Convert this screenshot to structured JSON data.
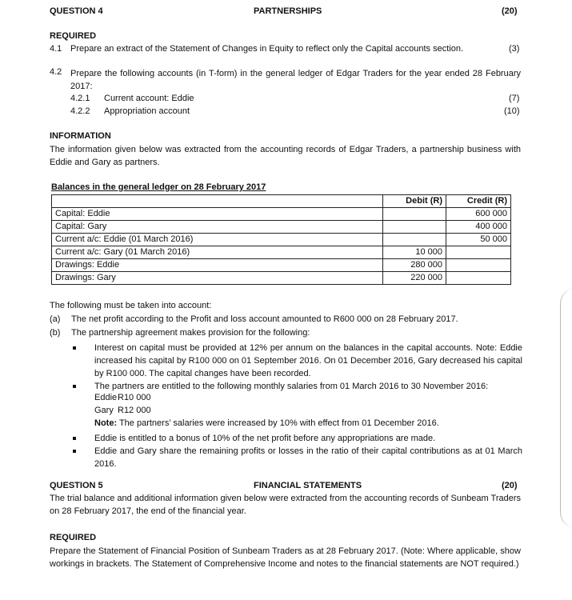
{
  "q4": {
    "title": "QUESTION 4",
    "topic": "PARTNERSHIPS",
    "marks": "(20)",
    "required": "REQUIRED",
    "r41_num": "4.1",
    "r41": "Prepare an extract of the Statement of Changes in Equity to reflect only the Capital accounts section.",
    "r41_marks": "(3)",
    "r42_num": "4.2",
    "r42": "Prepare the following accounts (in T-form) in the general ledger of Edgar Traders for the year ended 28 February 2017:",
    "r421_num": "4.2.1",
    "r421": "Current account: Eddie",
    "r421_marks": "(7)",
    "r422_num": "4.2.2",
    "r422": "Appropriation account",
    "r422_marks": "(10)",
    "info_heading": "INFORMATION",
    "info": "The information given below was extracted from the accounting records of Edgar Traders, a partnership business with Eddie and Gary as partners.",
    "table_title": "Balances in the general ledger on 28 February 2017",
    "table": {
      "headers": [
        "",
        "Debit (R)",
        "Credit (R)"
      ],
      "rows": [
        [
          "Capital: Eddie",
          "",
          "600 000"
        ],
        [
          "Capital: Gary",
          "",
          "400 000"
        ],
        [
          "Current a/c: Eddie (01 March 2016)",
          "",
          "50 000"
        ],
        [
          "Current a/c: Gary (01 March 2016)",
          "10 000",
          ""
        ],
        [
          "Drawings: Eddie",
          "280 000",
          ""
        ],
        [
          "Drawings: Gary",
          "220 000",
          ""
        ]
      ]
    },
    "following": "The following must be taken into account:",
    "a_label": "(a)",
    "a": "The net profit according to the Profit and loss account amounted to R600 000 on 28 February 2017.",
    "b_label": "(b)",
    "b": "The partnership agreement makes provision for the following:",
    "bullet1": "Interest on capital must be provided at 12% per annum on the balances in the capital accounts.  Note: Eddie increased his capital by R100 000 on 01 September 2016.  On 01 December 2016, Gary decreased his capital by R100 000.  The capital changes have been recorded.",
    "bullet2": "The partners are entitled to the following monthly salaries from 01 March 2016 to 30 November 2016:",
    "salary_eddie_name": "Eddie",
    "salary_eddie": "R10 000",
    "salary_gary_name": "Gary",
    "salary_gary": "R12 000",
    "note_label": "Note:",
    "note": " The partners’ salaries were increased by 10% with effect from 01 December 2016.",
    "bullet3": "Eddie is entitled to a bonus of 10% of the net profit before any appropriations are made.",
    "bullet4": "Eddie and Gary share the remaining profits or losses in the ratio of their capital contributions as at 01 March 2016."
  },
  "q5": {
    "title": "QUESTION 5",
    "topic": "FINANCIAL STATEMENTS",
    "marks": "(20)",
    "intro": "The trial balance and additional information given below were extracted from the accounting records of Sunbeam Traders on 28 February 2017, the end of the financial year.",
    "required": "REQUIRED",
    "req": "Prepare the Statement of Financial Position of Sunbeam Traders as at 28 February 2017.  (Note: Where applicable, show workings in brackets.  The Statement of Comprehensive Income and notes to the financial statements are NOT required.)"
  }
}
